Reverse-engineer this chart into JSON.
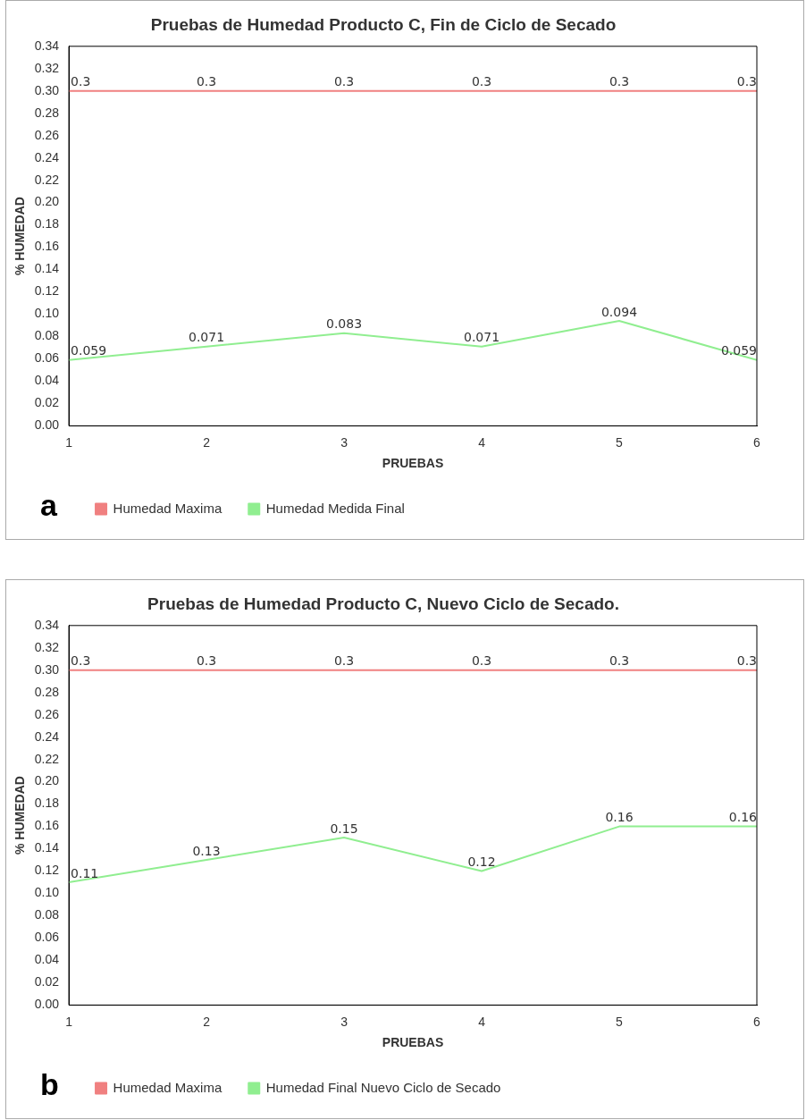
{
  "chart_data": [
    {
      "type": "line",
      "title": "Pruebas de Humedad Producto C, Fin de Ciclo de Secado",
      "xlabel": "PRUEBAS",
      "ylabel": "% HUMEDAD",
      "x": [
        1,
        2,
        3,
        4,
        5,
        6
      ],
      "xlim": [
        1,
        6
      ],
      "xticks": [
        1,
        2,
        3,
        4,
        5,
        6
      ],
      "ylim": [
        0,
        0.34
      ],
      "yticks": [
        {
          "value": 0,
          "label": "0.00"
        },
        {
          "value": 0.02,
          "label": "0.02"
        },
        {
          "value": 0.04,
          "label": "0.04"
        },
        {
          "value": 0.06,
          "label": "0.06"
        },
        {
          "value": 0.08,
          "label": "0.08"
        },
        {
          "value": 0.1,
          "label": "0.10"
        },
        {
          "value": 0.12,
          "label": "0.12"
        },
        {
          "value": 0.14,
          "label": "0.14"
        },
        {
          "value": 0.16,
          "label": "0.16"
        },
        {
          "value": 0.18,
          "label": "0.18"
        },
        {
          "value": 0.2,
          "label": "0.20"
        },
        {
          "value": 0.22,
          "label": "0.22"
        },
        {
          "value": 0.24,
          "label": "0.24"
        },
        {
          "value": 0.26,
          "label": "0.26"
        },
        {
          "value": 0.28,
          "label": "0.28"
        },
        {
          "value": 0.3,
          "label": "0.30"
        },
        {
          "value": 0.32,
          "label": "0.32"
        },
        {
          "value": 0.34,
          "label": "0.34"
        }
      ],
      "grid": false,
      "legend": "bottom left",
      "marker": "none",
      "data_labels": true,
      "annotations": [
        "a"
      ],
      "series": [
        {
          "name": "Humedad Maxima",
          "color": "#f08080",
          "values": [
            0.3,
            0.3,
            0.3,
            0.3,
            0.3,
            0.3
          ]
        },
        {
          "name": "Humedad Medida Final",
          "color": "#90ee90",
          "values": [
            0.059,
            0.071,
            0.083,
            0.071,
            0.094,
            0.059
          ]
        }
      ]
    },
    {
      "type": "line",
      "title": "Pruebas de Humedad Producto C, Nuevo Ciclo de Secado.",
      "xlabel": "PRUEBAS",
      "ylabel": "% HUMEDAD",
      "x": [
        1,
        2,
        3,
        4,
        5,
        6
      ],
      "xlim": [
        1,
        6
      ],
      "xticks": [
        1,
        2,
        3,
        4,
        5,
        6
      ],
      "ylim": [
        0,
        0.34
      ],
      "yticks": [
        {
          "value": 0,
          "label": "0.00"
        },
        {
          "value": 0.02,
          "label": "0.02"
        },
        {
          "value": 0.04,
          "label": "0.04"
        },
        {
          "value": 0.06,
          "label": "0.06"
        },
        {
          "value": 0.08,
          "label": "0.08"
        },
        {
          "value": 0.1,
          "label": "0.10"
        },
        {
          "value": 0.12,
          "label": "0.12"
        },
        {
          "value": 0.14,
          "label": "0.14"
        },
        {
          "value": 0.16,
          "label": "0.16"
        },
        {
          "value": 0.18,
          "label": "0.18"
        },
        {
          "value": 0.2,
          "label": "0.20"
        },
        {
          "value": 0.22,
          "label": "0.22"
        },
        {
          "value": 0.24,
          "label": "0.24"
        },
        {
          "value": 0.26,
          "label": "0.26"
        },
        {
          "value": 0.28,
          "label": "0.28"
        },
        {
          "value": 0.3,
          "label": "0.30"
        },
        {
          "value": 0.32,
          "label": "0.32"
        },
        {
          "value": 0.34,
          "label": "0.34"
        }
      ],
      "grid": false,
      "legend": "bottom left",
      "marker": "none",
      "data_labels": true,
      "annotations": [
        "b"
      ],
      "series": [
        {
          "name": "Humedad Maxima",
          "color": "#f08080",
          "values": [
            0.3,
            0.3,
            0.3,
            0.3,
            0.3,
            0.3
          ]
        },
        {
          "name": "Humedad Final Nuevo Ciclo de Secado",
          "color": "#90ee90",
          "values": [
            0.11,
            0.13,
            0.15,
            0.12,
            0.16,
            0.16
          ]
        }
      ]
    }
  ]
}
